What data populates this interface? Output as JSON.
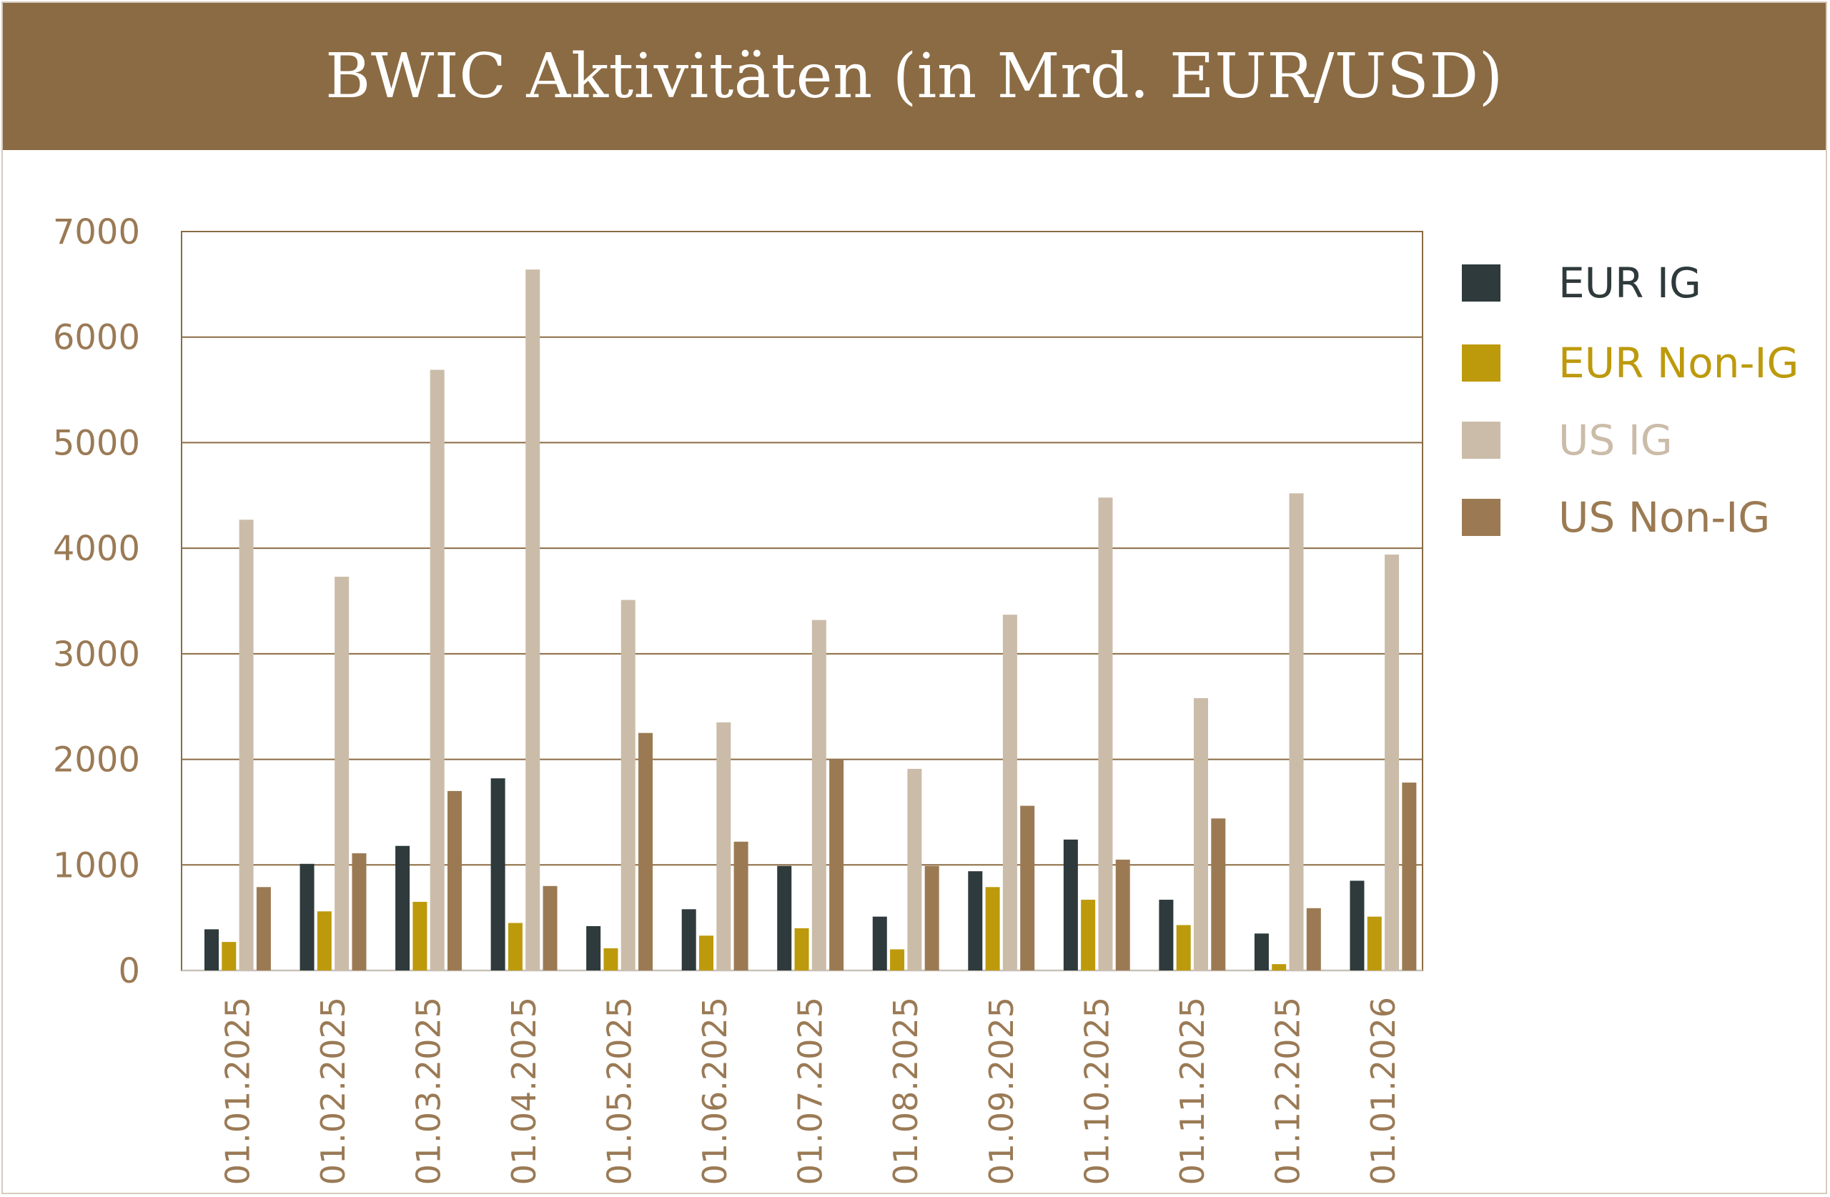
{
  "chart_data": {
    "type": "bar",
    "title": "BWIC Aktivitäten (in Mrd. EUR/USD)",
    "categories": [
      "01.01.2025",
      "01.02.2025",
      "01.03.2025",
      "01.04.2025",
      "01.05.2025",
      "01.06.2025",
      "01.07.2025",
      "01.08.2025",
      "01.09.2025",
      "01.10.2025",
      "01.11.2025",
      "01.12.2025",
      "01.01.2026"
    ],
    "ylim": [
      0,
      7000
    ],
    "yticks": [
      0,
      1000,
      2000,
      3000,
      4000,
      5000,
      6000,
      7000
    ],
    "grid": true,
    "legend_position": "right",
    "series": [
      {
        "name": "EUR IG",
        "color": "#2e3a3b",
        "values": [
          390,
          1010,
          1180,
          1820,
          420,
          580,
          990,
          510,
          940,
          1240,
          670,
          350,
          850
        ]
      },
      {
        "name": "EUR Non-IG",
        "color": "#bd9a0c",
        "values": [
          270,
          560,
          650,
          450,
          210,
          330,
          400,
          200,
          790,
          670,
          430,
          60,
          510
        ]
      },
      {
        "name": "US IG",
        "color": "#cbbca9",
        "values": [
          4270,
          3730,
          5690,
          6640,
          3510,
          2350,
          3320,
          1910,
          3370,
          4480,
          2580,
          4520,
          3940
        ]
      },
      {
        "name": "US Non-IG",
        "color": "#9b7a53",
        "values": [
          790,
          1110,
          1700,
          800,
          2250,
          1220,
          2000,
          990,
          1560,
          1050,
          1440,
          590,
          1780
        ]
      }
    ]
  }
}
